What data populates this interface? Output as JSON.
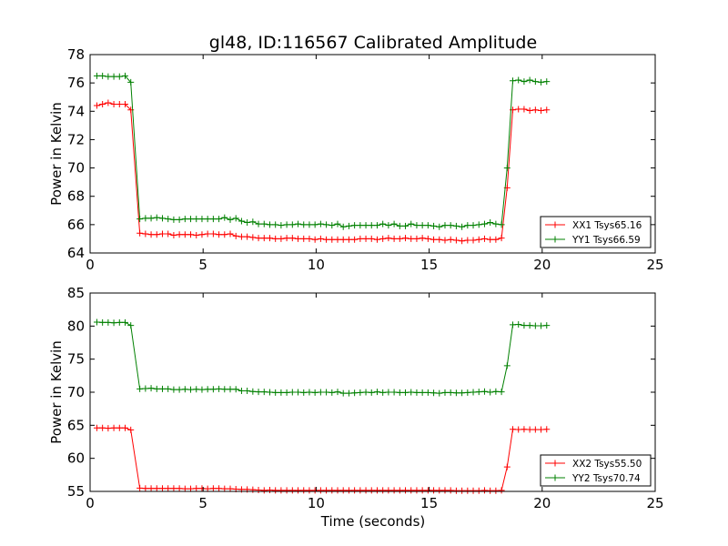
{
  "figure": {
    "title": "gl48, ID:116567 Calibrated Amplitude",
    "xlabel": "Time (seconds)"
  },
  "chart_data": [
    {
      "type": "line",
      "ylabel": "Power in Kelvin",
      "xlim": [
        0,
        25
      ],
      "ylim": [
        64,
        78
      ],
      "xticks": [
        0,
        5,
        10,
        15,
        20,
        25
      ],
      "yticks": [
        64,
        66,
        68,
        70,
        72,
        74,
        76,
        78
      ],
      "grid": false,
      "legend_position": "lower-right",
      "x": [
        0.3,
        0.55,
        0.8,
        1.05,
        1.3,
        1.55,
        1.8,
        2.2,
        2.45,
        2.7,
        2.95,
        3.2,
        3.45,
        3.7,
        3.95,
        4.2,
        4.45,
        4.7,
        4.95,
        5.2,
        5.45,
        5.7,
        5.95,
        6.2,
        6.45,
        6.7,
        6.95,
        7.2,
        7.45,
        7.7,
        7.95,
        8.2,
        8.45,
        8.7,
        8.95,
        9.2,
        9.45,
        9.7,
        9.95,
        10.2,
        10.45,
        10.7,
        10.95,
        11.2,
        11.45,
        11.7,
        11.95,
        12.2,
        12.45,
        12.7,
        12.95,
        13.2,
        13.45,
        13.7,
        13.95,
        14.2,
        14.45,
        14.7,
        14.95,
        15.2,
        15.45,
        15.7,
        15.95,
        16.2,
        16.45,
        16.7,
        16.95,
        17.2,
        17.45,
        17.7,
        17.95,
        18.2,
        18.45,
        18.7,
        18.95,
        19.2,
        19.45,
        19.7,
        19.95,
        20.2
      ],
      "series": [
        {
          "name": "XX1 Tsys65.16",
          "color": "#ff0000",
          "values": [
            74.4,
            74.5,
            74.6,
            74.5,
            74.5,
            74.5,
            74.1,
            65.4,
            65.35,
            65.3,
            65.3,
            65.35,
            65.35,
            65.25,
            65.3,
            65.3,
            65.3,
            65.25,
            65.3,
            65.35,
            65.35,
            65.3,
            65.3,
            65.35,
            65.2,
            65.15,
            65.15,
            65.1,
            65.05,
            65.05,
            65.05,
            65.0,
            65.0,
            65.05,
            65.05,
            65.0,
            65.0,
            65.0,
            64.95,
            65.0,
            64.95,
            64.95,
            64.95,
            64.95,
            64.95,
            64.95,
            65.0,
            65.0,
            65.0,
            64.95,
            65.0,
            65.05,
            65.0,
            65.0,
            65.05,
            65.0,
            65.0,
            65.05,
            65.0,
            64.95,
            64.95,
            64.9,
            64.95,
            64.9,
            64.85,
            64.9,
            64.9,
            64.95,
            65.0,
            64.95,
            64.95,
            65.05,
            68.6,
            74.1,
            74.15,
            74.15,
            74.05,
            74.1,
            74.05,
            74.1
          ]
        },
        {
          "name": "YY1 Tsys66.59",
          "color": "#008000",
          "values": [
            76.5,
            76.5,
            76.45,
            76.45,
            76.45,
            76.5,
            76.05,
            66.4,
            66.45,
            66.45,
            66.5,
            66.45,
            66.4,
            66.35,
            66.35,
            66.4,
            66.4,
            66.4,
            66.4,
            66.4,
            66.4,
            66.4,
            66.5,
            66.35,
            66.45,
            66.25,
            66.15,
            66.2,
            66.05,
            66.05,
            66.0,
            66.0,
            65.95,
            66.0,
            66.0,
            66.05,
            66.0,
            66.0,
            66.0,
            66.05,
            66.0,
            65.95,
            66.05,
            65.85,
            65.9,
            65.95,
            65.95,
            65.95,
            65.95,
            65.95,
            66.05,
            65.95,
            66.05,
            65.9,
            65.9,
            66.05,
            65.95,
            65.95,
            65.95,
            65.9,
            65.85,
            65.95,
            65.95,
            65.9,
            65.85,
            65.95,
            65.95,
            66.0,
            66.05,
            66.15,
            66.05,
            66.0,
            70.0,
            76.15,
            76.2,
            76.1,
            76.2,
            76.1,
            76.05,
            76.1
          ]
        }
      ]
    },
    {
      "type": "line",
      "ylabel": "Power in Kelvin",
      "xlim": [
        0,
        25
      ],
      "ylim": [
        55,
        85
      ],
      "xticks": [
        0,
        5,
        10,
        15,
        20,
        25
      ],
      "yticks": [
        55,
        60,
        65,
        70,
        75,
        80,
        85
      ],
      "grid": false,
      "legend_position": "lower-right",
      "x": [
        0.3,
        0.55,
        0.8,
        1.05,
        1.3,
        1.55,
        1.8,
        2.2,
        2.45,
        2.7,
        2.95,
        3.2,
        3.45,
        3.7,
        3.95,
        4.2,
        4.45,
        4.7,
        4.95,
        5.2,
        5.45,
        5.7,
        5.95,
        6.2,
        6.45,
        6.7,
        6.95,
        7.2,
        7.45,
        7.7,
        7.95,
        8.2,
        8.45,
        8.7,
        8.95,
        9.2,
        9.45,
        9.7,
        9.95,
        10.2,
        10.45,
        10.7,
        10.95,
        11.2,
        11.45,
        11.7,
        11.95,
        12.2,
        12.45,
        12.7,
        12.95,
        13.2,
        13.45,
        13.7,
        13.95,
        14.2,
        14.45,
        14.7,
        14.95,
        15.2,
        15.45,
        15.7,
        15.95,
        16.2,
        16.45,
        16.7,
        16.95,
        17.2,
        17.45,
        17.7,
        17.95,
        18.2,
        18.45,
        18.7,
        18.95,
        19.2,
        19.45,
        19.7,
        19.95,
        20.2
      ],
      "series": [
        {
          "name": "XX2 Tsys55.50",
          "color": "#ff0000",
          "values": [
            64.6,
            64.6,
            64.55,
            64.6,
            64.6,
            64.6,
            64.3,
            55.5,
            55.45,
            55.45,
            55.45,
            55.45,
            55.45,
            55.45,
            55.45,
            55.4,
            55.4,
            55.45,
            55.45,
            55.4,
            55.45,
            55.45,
            55.4,
            55.4,
            55.35,
            55.3,
            55.3,
            55.25,
            55.2,
            55.15,
            55.2,
            55.15,
            55.15,
            55.15,
            55.15,
            55.15,
            55.15,
            55.15,
            55.15,
            55.15,
            55.15,
            55.15,
            55.15,
            55.15,
            55.15,
            55.15,
            55.15,
            55.15,
            55.15,
            55.15,
            55.15,
            55.15,
            55.15,
            55.15,
            55.15,
            55.15,
            55.15,
            55.15,
            55.15,
            55.15,
            55.15,
            55.15,
            55.15,
            55.1,
            55.1,
            55.1,
            55.1,
            55.1,
            55.15,
            55.1,
            55.1,
            55.15,
            58.7,
            64.4,
            64.35,
            64.4,
            64.35,
            64.35,
            64.35,
            64.4
          ]
        },
        {
          "name": "YY2 Tsys70.74",
          "color": "#008000",
          "values": [
            80.6,
            80.55,
            80.55,
            80.5,
            80.55,
            80.55,
            80.1,
            70.5,
            70.55,
            70.6,
            70.5,
            70.5,
            70.5,
            70.4,
            70.4,
            70.45,
            70.4,
            70.45,
            70.4,
            70.45,
            70.45,
            70.5,
            70.45,
            70.45,
            70.45,
            70.2,
            70.2,
            70.1,
            70.05,
            70.05,
            70.0,
            69.95,
            69.95,
            69.95,
            70.0,
            70.0,
            69.95,
            70.0,
            69.95,
            70.0,
            70.0,
            69.95,
            70.05,
            69.85,
            69.85,
            69.9,
            69.95,
            70.0,
            69.95,
            70.05,
            69.95,
            70.0,
            70.0,
            69.95,
            69.95,
            70.0,
            69.95,
            69.95,
            69.95,
            69.9,
            69.85,
            69.95,
            69.95,
            69.9,
            69.9,
            69.95,
            70.0,
            70.05,
            70.1,
            70.0,
            70.1,
            70.05,
            74.0,
            80.2,
            80.25,
            80.1,
            80.1,
            80.05,
            80.05,
            80.1
          ]
        }
      ]
    }
  ]
}
